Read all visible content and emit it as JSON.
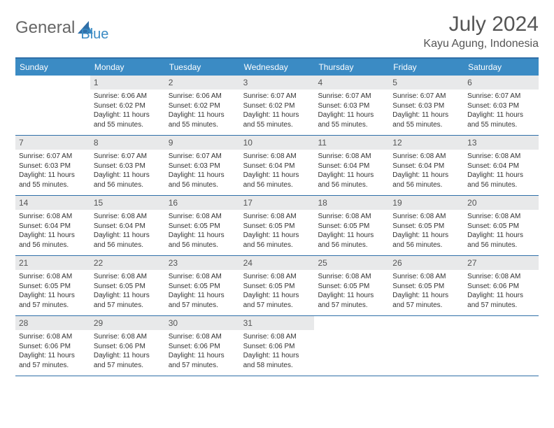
{
  "logo": {
    "text1": "General",
    "text2": "Blue"
  },
  "title": "July 2024",
  "location": "Kayu Agung, Indonesia",
  "colors": {
    "header_bg": "#3b8bc4",
    "header_text": "#ffffff",
    "border": "#2f6fa8",
    "daynum_bg": "#e8e9ea",
    "text": "#333333",
    "muted": "#555555"
  },
  "weekdays": [
    "Sunday",
    "Monday",
    "Tuesday",
    "Wednesday",
    "Thursday",
    "Friday",
    "Saturday"
  ],
  "weeks": [
    [
      {
        "num": "",
        "sunrise": "",
        "sunset": "",
        "daylight": ""
      },
      {
        "num": "1",
        "sunrise": "Sunrise: 6:06 AM",
        "sunset": "Sunset: 6:02 PM",
        "daylight": "Daylight: 11 hours and 55 minutes."
      },
      {
        "num": "2",
        "sunrise": "Sunrise: 6:06 AM",
        "sunset": "Sunset: 6:02 PM",
        "daylight": "Daylight: 11 hours and 55 minutes."
      },
      {
        "num": "3",
        "sunrise": "Sunrise: 6:07 AM",
        "sunset": "Sunset: 6:02 PM",
        "daylight": "Daylight: 11 hours and 55 minutes."
      },
      {
        "num": "4",
        "sunrise": "Sunrise: 6:07 AM",
        "sunset": "Sunset: 6:03 PM",
        "daylight": "Daylight: 11 hours and 55 minutes."
      },
      {
        "num": "5",
        "sunrise": "Sunrise: 6:07 AM",
        "sunset": "Sunset: 6:03 PM",
        "daylight": "Daylight: 11 hours and 55 minutes."
      },
      {
        "num": "6",
        "sunrise": "Sunrise: 6:07 AM",
        "sunset": "Sunset: 6:03 PM",
        "daylight": "Daylight: 11 hours and 55 minutes."
      }
    ],
    [
      {
        "num": "7",
        "sunrise": "Sunrise: 6:07 AM",
        "sunset": "Sunset: 6:03 PM",
        "daylight": "Daylight: 11 hours and 55 minutes."
      },
      {
        "num": "8",
        "sunrise": "Sunrise: 6:07 AM",
        "sunset": "Sunset: 6:03 PM",
        "daylight": "Daylight: 11 hours and 56 minutes."
      },
      {
        "num": "9",
        "sunrise": "Sunrise: 6:07 AM",
        "sunset": "Sunset: 6:03 PM",
        "daylight": "Daylight: 11 hours and 56 minutes."
      },
      {
        "num": "10",
        "sunrise": "Sunrise: 6:08 AM",
        "sunset": "Sunset: 6:04 PM",
        "daylight": "Daylight: 11 hours and 56 minutes."
      },
      {
        "num": "11",
        "sunrise": "Sunrise: 6:08 AM",
        "sunset": "Sunset: 6:04 PM",
        "daylight": "Daylight: 11 hours and 56 minutes."
      },
      {
        "num": "12",
        "sunrise": "Sunrise: 6:08 AM",
        "sunset": "Sunset: 6:04 PM",
        "daylight": "Daylight: 11 hours and 56 minutes."
      },
      {
        "num": "13",
        "sunrise": "Sunrise: 6:08 AM",
        "sunset": "Sunset: 6:04 PM",
        "daylight": "Daylight: 11 hours and 56 minutes."
      }
    ],
    [
      {
        "num": "14",
        "sunrise": "Sunrise: 6:08 AM",
        "sunset": "Sunset: 6:04 PM",
        "daylight": "Daylight: 11 hours and 56 minutes."
      },
      {
        "num": "15",
        "sunrise": "Sunrise: 6:08 AM",
        "sunset": "Sunset: 6:04 PM",
        "daylight": "Daylight: 11 hours and 56 minutes."
      },
      {
        "num": "16",
        "sunrise": "Sunrise: 6:08 AM",
        "sunset": "Sunset: 6:05 PM",
        "daylight": "Daylight: 11 hours and 56 minutes."
      },
      {
        "num": "17",
        "sunrise": "Sunrise: 6:08 AM",
        "sunset": "Sunset: 6:05 PM",
        "daylight": "Daylight: 11 hours and 56 minutes."
      },
      {
        "num": "18",
        "sunrise": "Sunrise: 6:08 AM",
        "sunset": "Sunset: 6:05 PM",
        "daylight": "Daylight: 11 hours and 56 minutes."
      },
      {
        "num": "19",
        "sunrise": "Sunrise: 6:08 AM",
        "sunset": "Sunset: 6:05 PM",
        "daylight": "Daylight: 11 hours and 56 minutes."
      },
      {
        "num": "20",
        "sunrise": "Sunrise: 6:08 AM",
        "sunset": "Sunset: 6:05 PM",
        "daylight": "Daylight: 11 hours and 56 minutes."
      }
    ],
    [
      {
        "num": "21",
        "sunrise": "Sunrise: 6:08 AM",
        "sunset": "Sunset: 6:05 PM",
        "daylight": "Daylight: 11 hours and 57 minutes."
      },
      {
        "num": "22",
        "sunrise": "Sunrise: 6:08 AM",
        "sunset": "Sunset: 6:05 PM",
        "daylight": "Daylight: 11 hours and 57 minutes."
      },
      {
        "num": "23",
        "sunrise": "Sunrise: 6:08 AM",
        "sunset": "Sunset: 6:05 PM",
        "daylight": "Daylight: 11 hours and 57 minutes."
      },
      {
        "num": "24",
        "sunrise": "Sunrise: 6:08 AM",
        "sunset": "Sunset: 6:05 PM",
        "daylight": "Daylight: 11 hours and 57 minutes."
      },
      {
        "num": "25",
        "sunrise": "Sunrise: 6:08 AM",
        "sunset": "Sunset: 6:05 PM",
        "daylight": "Daylight: 11 hours and 57 minutes."
      },
      {
        "num": "26",
        "sunrise": "Sunrise: 6:08 AM",
        "sunset": "Sunset: 6:05 PM",
        "daylight": "Daylight: 11 hours and 57 minutes."
      },
      {
        "num": "27",
        "sunrise": "Sunrise: 6:08 AM",
        "sunset": "Sunset: 6:06 PM",
        "daylight": "Daylight: 11 hours and 57 minutes."
      }
    ],
    [
      {
        "num": "28",
        "sunrise": "Sunrise: 6:08 AM",
        "sunset": "Sunset: 6:06 PM",
        "daylight": "Daylight: 11 hours and 57 minutes."
      },
      {
        "num": "29",
        "sunrise": "Sunrise: 6:08 AM",
        "sunset": "Sunset: 6:06 PM",
        "daylight": "Daylight: 11 hours and 57 minutes."
      },
      {
        "num": "30",
        "sunrise": "Sunrise: 6:08 AM",
        "sunset": "Sunset: 6:06 PM",
        "daylight": "Daylight: 11 hours and 57 minutes."
      },
      {
        "num": "31",
        "sunrise": "Sunrise: 6:08 AM",
        "sunset": "Sunset: 6:06 PM",
        "daylight": "Daylight: 11 hours and 58 minutes."
      },
      {
        "num": "",
        "sunrise": "",
        "sunset": "",
        "daylight": ""
      },
      {
        "num": "",
        "sunrise": "",
        "sunset": "",
        "daylight": ""
      },
      {
        "num": "",
        "sunrise": "",
        "sunset": "",
        "daylight": ""
      }
    ]
  ]
}
